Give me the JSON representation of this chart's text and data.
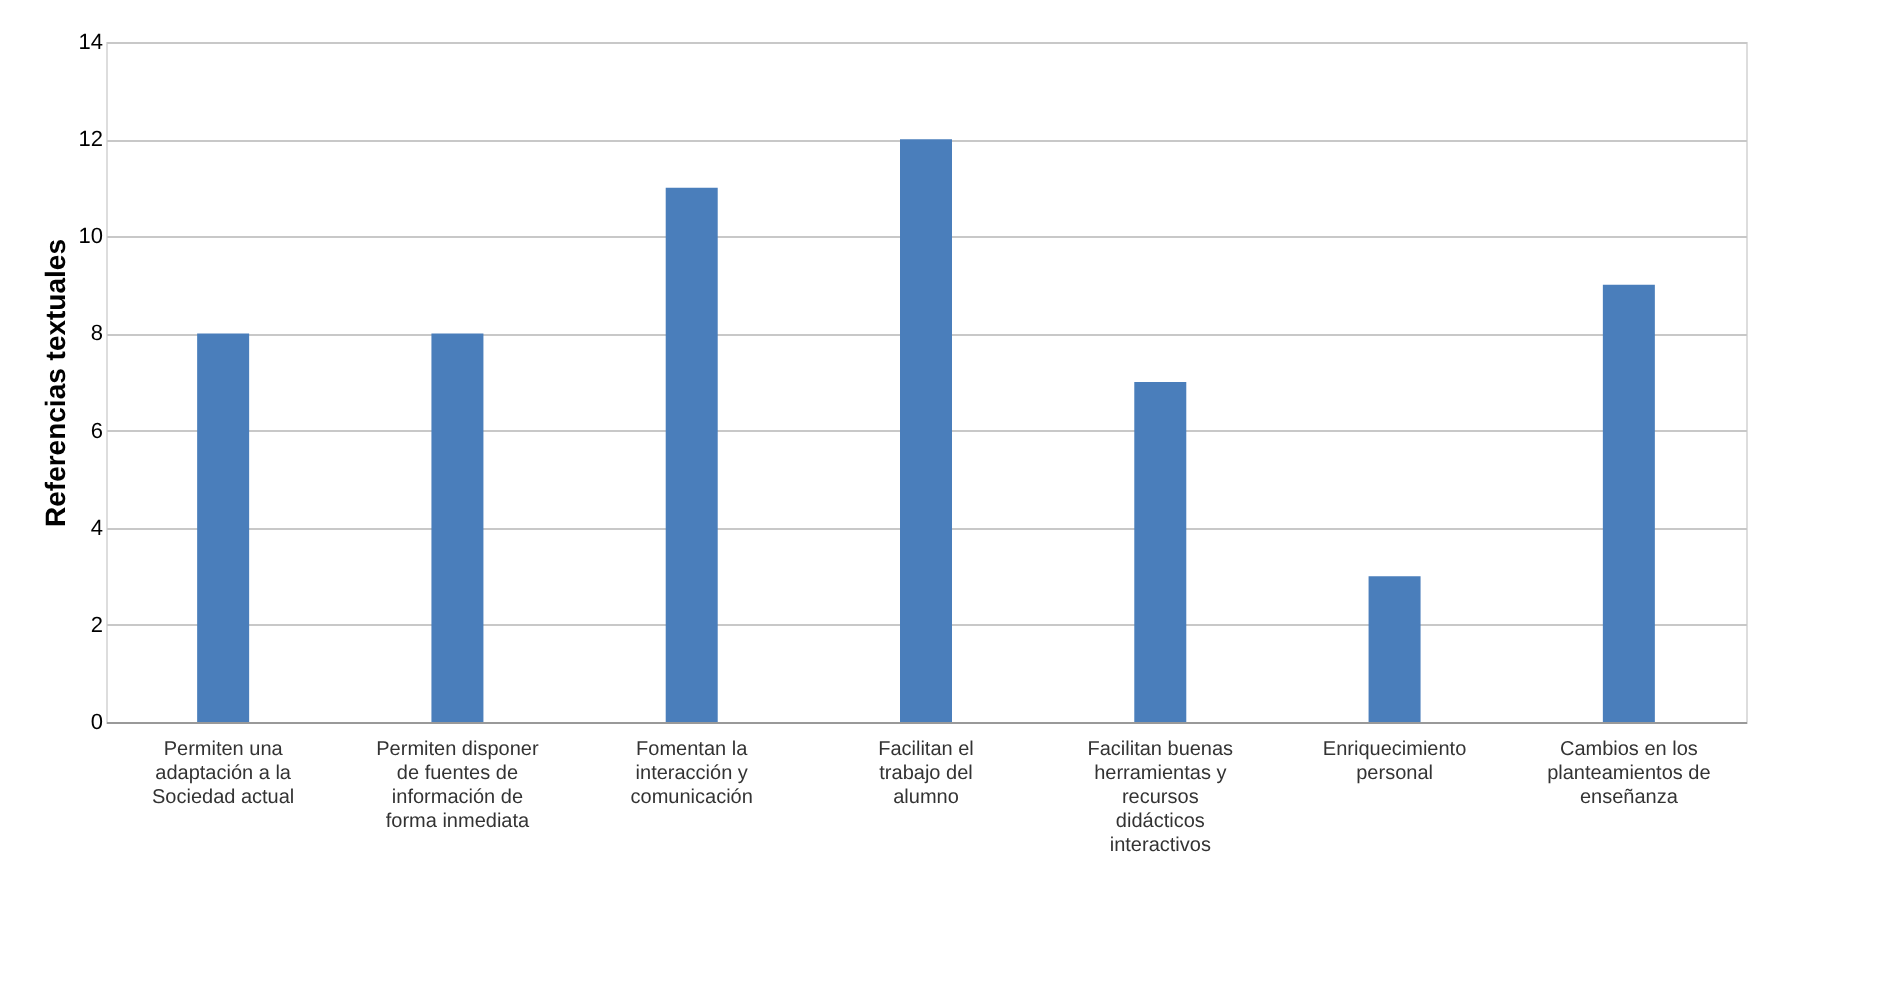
{
  "chart_data": {
    "type": "bar",
    "ylabel": "Referencias textuales",
    "categories": [
      "Permiten una adaptación a la Sociedad actual",
      "Permiten disponer de fuentes de información de forma inmediata",
      "Fomentan la interacción y comunicación",
      "Facilitan el trabajo del alumno",
      "Facilitan buenas herramientas y recursos didácticos interactivos",
      "Enriquecimiento personal",
      "Cambios en los planteamientos de enseñanza"
    ],
    "values": [
      8,
      8,
      11,
      12,
      7,
      3,
      9
    ],
    "color": "#4a7ebb",
    "ylim": [
      0,
      14
    ],
    "yticks": [
      0,
      2,
      4,
      6,
      8,
      10,
      12,
      14
    ],
    "grid": "y"
  }
}
